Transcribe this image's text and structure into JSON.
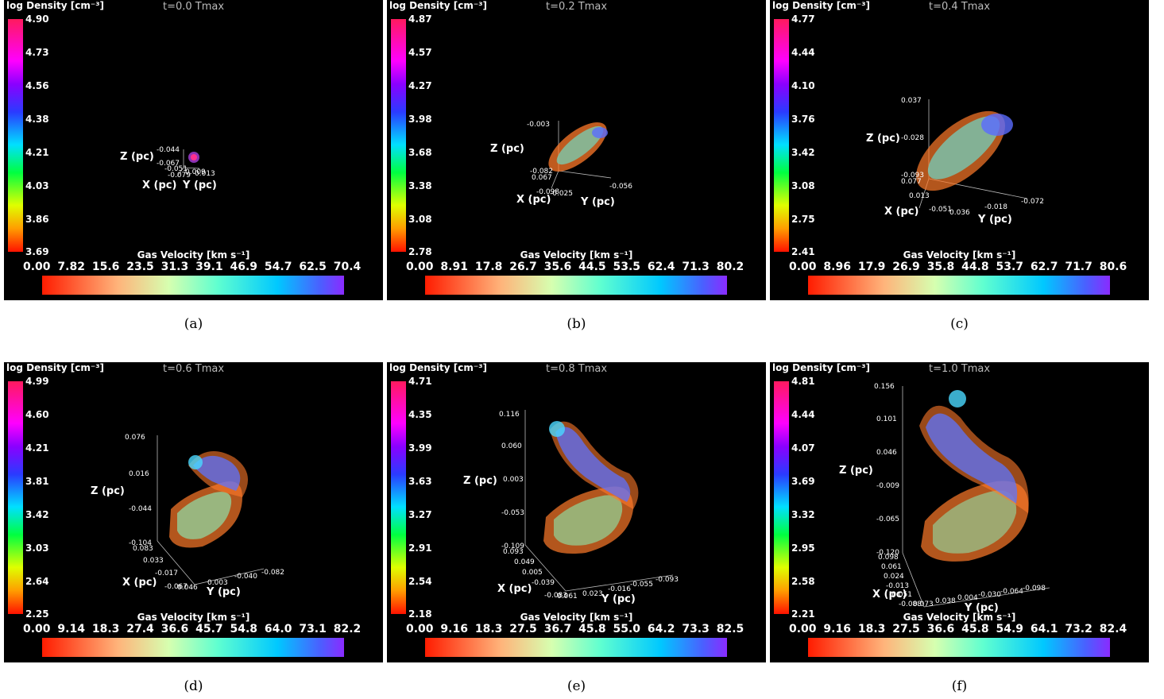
{
  "panels": [
    {
      "caption": "(a)",
      "time": "t=0.0 Tmax",
      "density_title": "log Density [cm⁻³]",
      "density_ticks": [
        "4.90",
        "4.73",
        "4.56",
        "4.38",
        "4.21",
        "4.03",
        "3.86",
        "3.69"
      ],
      "velocity_title": "Gas Velocity [km s⁻¹]",
      "velocity_ticks": "0.00  7.82  15.6  23.5  31.3  39.1  46.9  54.7  62.5  70.4",
      "axis": {
        "z": "Z (pc)",
        "x": "X (pc)",
        "y": "Y (pc)",
        "zt": [
          "-0.044",
          "-0.067"
        ],
        "xt": [
          "-0.051",
          "-0.079"
        ],
        "yt": [
          "0.009",
          "0.013"
        ]
      }
    },
    {
      "caption": "(b)",
      "time": "t=0.2 Tmax",
      "density_title": "log Density [cm⁻³]",
      "density_ticks": [
        "4.87",
        "4.57",
        "4.27",
        "3.98",
        "3.68",
        "3.38",
        "3.08",
        "2.78"
      ],
      "velocity_title": "Gas Velocity [km s⁻¹]",
      "velocity_ticks": "0.00  8.91  17.8  26.7  35.6  44.5  53.5  62.4  71.3  80.2",
      "axis": {
        "z": "Z (pc)",
        "x": "X (pc)",
        "y": "Y (pc)",
        "zt": [
          "-0.003",
          "-0.082"
        ],
        "xt": [
          "0.067",
          "-0.098"
        ],
        "yt": [
          "-0.025",
          "-0.056"
        ]
      }
    },
    {
      "caption": "(c)",
      "time": "t=0.4 Tmax",
      "density_title": "log Density [cm⁻³]",
      "density_ticks": [
        "4.77",
        "4.44",
        "4.10",
        "3.76",
        "3.42",
        "3.08",
        "2.75",
        "2.41"
      ],
      "velocity_title": "Gas Velocity [km s⁻¹]",
      "velocity_ticks": "0.00  8.96  17.9  26.9  35.8  44.8  53.7  62.7  71.7  80.6",
      "axis": {
        "z": "Z (pc)",
        "x": "X (pc)",
        "y": "Y (pc)",
        "zt": [
          "0.037",
          "-0.028",
          "-0.093"
        ],
        "xt": [
          "0.077",
          "0.013",
          "-0.051"
        ],
        "yt": [
          "0.036",
          "-0.018",
          "-0.072"
        ]
      }
    },
    {
      "caption": "(d)",
      "time": "t=0.6 Tmax",
      "density_title": "log Density [cm⁻³]",
      "density_ticks": [
        "4.99",
        "4.60",
        "4.21",
        "3.81",
        "3.42",
        "3.03",
        "2.64",
        "2.25"
      ],
      "velocity_title": "Gas Velocity [km s⁻¹]",
      "velocity_ticks": "0.00  9.14  18.3  27.4  36.6  45.7  54.8  64.0  73.1  82.2",
      "axis": {
        "z": "Z (pc)",
        "x": "X (pc)",
        "y": "Y (pc)",
        "zt": [
          "0.076",
          "0.016",
          "-0.044",
          "-0.104"
        ],
        "xt": [
          "0.083",
          "0.033",
          "-0.017",
          "-0.067"
        ],
        "yt": [
          "0.046",
          "0.003",
          "-0.040",
          "-0.082"
        ]
      }
    },
    {
      "caption": "(e)",
      "time": "t=0.8 Tmax",
      "density_title": "log Density [cm⁻³]",
      "density_ticks": [
        "4.71",
        "4.35",
        "3.99",
        "3.63",
        "3.27",
        "2.91",
        "2.54",
        "2.18"
      ],
      "velocity_title": "Gas Velocity [km s⁻¹]",
      "velocity_ticks": "0.00  9.16  18.3  27.5  36.7  45.8  55.0  64.2  73.3  82.5",
      "axis": {
        "z": "Z (pc)",
        "x": "X (pc)",
        "y": "Y (pc)",
        "zt": [
          "0.116",
          "0.060",
          "0.003",
          "-0.053",
          "-0.109"
        ],
        "xt": [
          "0.093",
          "0.049",
          "0.005",
          "-0.039",
          "-0.083"
        ],
        "yt": [
          "0.061",
          "0.023",
          "-0.016",
          "-0.055",
          "-0.093"
        ]
      }
    },
    {
      "caption": "(f)",
      "time": "t=1.0 Tmax",
      "density_title": "log Density [cm⁻³]",
      "density_ticks": [
        "4.81",
        "4.44",
        "4.07",
        "3.69",
        "3.32",
        "2.95",
        "2.58",
        "2.21"
      ],
      "velocity_title": "Gas Velocity [km s⁻¹]",
      "velocity_ticks": "0.00  9.16  18.3  27.5  36.6  45.8  54.9  64.1  73.2  82.4",
      "axis": {
        "z": "Z (pc)",
        "x": "X (pc)",
        "y": "Y (pc)",
        "zt": [
          "0.156",
          "0.101",
          "0.046",
          "-0.009",
          "-0.065",
          "-0.120"
        ],
        "xt": [
          "0.098",
          "0.061",
          "0.024",
          "-0.013",
          "-0.051",
          "-0.088"
        ],
        "yt": [
          "0.073",
          "0.038",
          "0.004",
          "-0.030",
          "-0.064",
          "-0.098"
        ]
      }
    }
  ]
}
